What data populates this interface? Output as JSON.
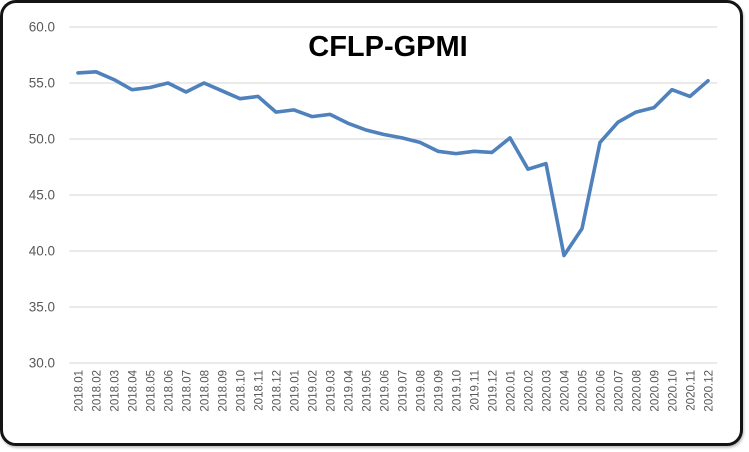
{
  "window": {
    "background_color": "#ffffff",
    "border_color": "#141414"
  },
  "chart_data": {
    "type": "line",
    "title": "CFLP-GPMI",
    "series_name": "CFLP-GPMI",
    "categories": [
      "2018.01",
      "2018.02",
      "2018.03",
      "2018.04",
      "2018.05",
      "2018.06",
      "2018.07",
      "2018.08",
      "2018.09",
      "2018.10",
      "2018.11",
      "2018.12",
      "2019.01",
      "2019.02",
      "2019.03",
      "2019.04",
      "2019.05",
      "2019.06",
      "2019.07",
      "2019.08",
      "2019.09",
      "2019.10",
      "2019.11",
      "2019.12",
      "2020.01",
      "2020.02",
      "2020.03",
      "2020.04",
      "2020.05",
      "2020.06",
      "2020.07",
      "2020.08",
      "2020.09",
      "2020.10",
      "2020.11",
      "2020.12"
    ],
    "values": [
      55.9,
      56.0,
      55.3,
      54.4,
      54.6,
      55.0,
      54.2,
      55.0,
      54.3,
      53.6,
      53.8,
      52.4,
      52.6,
      52.0,
      52.2,
      51.4,
      50.8,
      50.4,
      50.1,
      49.7,
      48.9,
      48.7,
      48.9,
      48.8,
      50.1,
      47.3,
      47.8,
      39.6,
      42.0,
      49.7,
      51.5,
      52.4,
      52.8,
      54.4,
      53.8,
      55.2
    ],
    "xlabel": "",
    "ylabel": "",
    "ylim": [
      30.0,
      60.0
    ],
    "ytick_step": 5.0,
    "ytick_labels": [
      "60.0",
      "55.0",
      "50.0",
      "45.0",
      "40.0",
      "35.0",
      "30.0"
    ],
    "grid": "horizontal",
    "legend": "none",
    "line_color": "#4F81BD",
    "gridline_color": "#D6D6D6",
    "axis_text_color": "#595959",
    "title_color": "#000000"
  }
}
